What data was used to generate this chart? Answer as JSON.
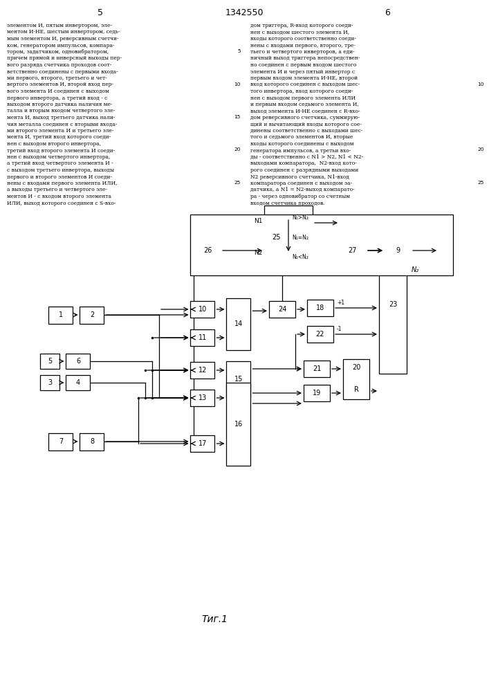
{
  "title": "1342550",
  "page_left": "5",
  "page_right": "6",
  "fig_label": "Τиг.1",
  "background": "#ffffff",
  "left_text": "элементом И, пятым инвертором, эле-\nментом И-НЕ, шестым инвертором, седь-\nмым элементом И, реверсивным счетчи-\nком, генератором импульсов, компара-\nтором, задатчиком, одновибратором,\nпричем прямой и инверсный выходы пер-\nвого разряда счетчика проходов соот-\nветственно соединены с первыми входа-\nми первого, второго, третьего и чет-\nвертого элементов И, второй вход пер-\nвого элемента И соединен с выходом\nпервого инвертора, а третий вход - с\nвыходом второго датчика наличия ме-\nталла и вторым входом четвертого эле-\nмента И, выход третьего датчика нали-\nчия металла соединен с вторыми входа-\nми второго элемента И и третьего эле-\nмента И, третий вход которого соеди-\nнен с выходом второго инвертора,\nтретий вход второго элемента И соеди-\nнен с выходом четвертого инвертора,\nа третий вход четвертого элемента И -\nс выходом третьего инвертора, выходы\nпервого и второго элементов И соеди-\nнены с входами первого элемента ИЛИ,\nа выходы третьего и четвертого эле-\nментов И - с входом второго элемента\nИЛИ, выход которого соединен с S-вхо-",
  "right_text": "дом триггера, R-вход которого соеди-\nнен с выходом шестого элемента И,\nвходы которого соответственно соеди-\nнены с входами первого, второго, тре-\nтьего и четвертого инверторов, а еди-\nничный выход триггера непосредствен-\nно соединен с первым входом шестого\nэлемента И и через пятый инвертор с\nпервым входом элемента И-НЕ, второй\nвход которого соединен с выходом шес-\nтого инвертора, вход которого соеди-\nнен с выходом первого элемента ИЛИ\nи первым входом седьмого элемента И,\nвыход элемента И-НЕ соединен с R-вхо-\nдом реверсивного счетчика, суммирую-\nщий и вычитающий входы которого сое-\nдинены соответственно с выходами шес-\nтого и седьмого элементов И, вторые\nвходы которого соединены с выходом\nгенератора импульсов, а третьи вхо-\nды - соответственно с N1 > N2, N1 < N2-\nвыходами компаратора,  N2-вход кото-\nрого соединен с разрядными выходами\nN2 реверсивного счетчика, N1-вход\nкомпаратора соединен с выходом за-\nдатчика, а N1 = N2-выход компарато-\nра - через одновибратор со счетным\nвходом счетчика проходов.",
  "lineno_5": 5,
  "lineno_10": 10,
  "lineno_15": 15,
  "lineno_20": 20,
  "lineno_25": 25
}
